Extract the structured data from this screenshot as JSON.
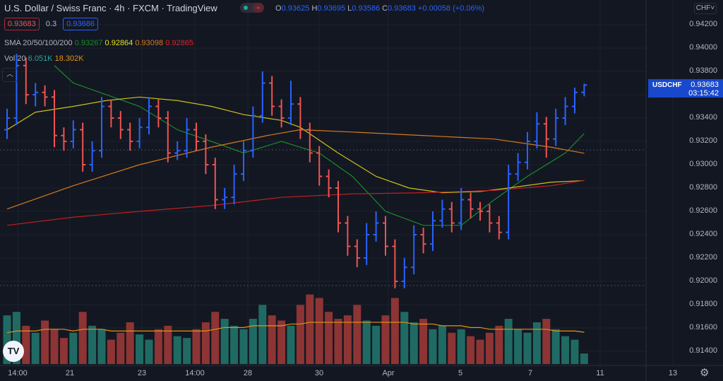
{
  "header": {
    "title": "U.S. Dollar / Swiss Franc · 4h · FXCM · TradingView",
    "ohlc": {
      "o_label": "O",
      "o": "0.93625",
      "h_label": "H",
      "h": "0.93695",
      "l_label": "L",
      "l": "0.93586",
      "c_label": "C",
      "c": "0.93683",
      "change": "+0.00058 (+0.06%)"
    },
    "sell_price": "0.93683",
    "spread": "0.3",
    "buy_price": "0.93686",
    "sma_label": "SMA 20/50/100/200",
    "sma_values": [
      "0.93267",
      "0.92864",
      "0.93098",
      "0.92865"
    ],
    "vol_label": "Vol 20",
    "vol_values": [
      "6.051K",
      "18.302K"
    ]
  },
  "currency_button": "CHF",
  "symbol_tag": {
    "symbol": "USDCHF",
    "price": "0.93683",
    "countdown": "03:15:42"
  },
  "colors": {
    "up": "#2962ff",
    "down": "#ef5350",
    "sma20": "#1b8a2a",
    "sma50": "#c9c21a",
    "sma100": "#d67a1c",
    "sma200": "#c01f1f",
    "vol_up": "#1f6b64",
    "vol_down": "#8d3434",
    "vol_ma": "#e6930e",
    "bg": "#131722"
  },
  "price_axis": [
    "0.94200",
    "0.94000",
    "0.93800",
    "0.93400",
    "0.93200",
    "0.93000",
    "0.92800",
    "0.92600",
    "0.92400",
    "0.92200",
    "0.92000",
    "0.91800",
    "0.91600",
    "0.91400"
  ],
  "time_axis": [
    "14:00",
    "21",
    "23",
    "14:00",
    "28",
    "30",
    "Apr",
    "5",
    "7",
    "11",
    "13"
  ],
  "chart_data": {
    "type": "ohlc",
    "ylim": [
      0.913,
      0.943
    ],
    "bars": [
      [
        0.933,
        0.9348,
        0.9322,
        0.934
      ],
      [
        0.934,
        0.9395,
        0.9334,
        0.9385
      ],
      [
        0.9385,
        0.9392,
        0.9352,
        0.936
      ],
      [
        0.936,
        0.937,
        0.935,
        0.9362
      ],
      [
        0.9362,
        0.9368,
        0.935,
        0.9358
      ],
      [
        0.9358,
        0.9364,
        0.9315,
        0.9325
      ],
      [
        0.9325,
        0.9332,
        0.9312,
        0.932
      ],
      [
        0.932,
        0.9338,
        0.9314,
        0.933
      ],
      [
        0.933,
        0.9336,
        0.9294,
        0.93
      ],
      [
        0.93,
        0.932,
        0.9294,
        0.9312
      ],
      [
        0.9312,
        0.9358,
        0.9306,
        0.935
      ],
      [
        0.935,
        0.9356,
        0.9332,
        0.934
      ],
      [
        0.934,
        0.9346,
        0.9322,
        0.933
      ],
      [
        0.933,
        0.9336,
        0.9312,
        0.932
      ],
      [
        0.932,
        0.934,
        0.9314,
        0.9332
      ],
      [
        0.9332,
        0.9358,
        0.9326,
        0.935
      ],
      [
        0.935,
        0.9356,
        0.9332,
        0.934
      ],
      [
        0.934,
        0.9346,
        0.9302,
        0.931
      ],
      [
        0.931,
        0.932,
        0.9304,
        0.9312
      ],
      [
        0.9312,
        0.934,
        0.9306,
        0.933
      ],
      [
        0.933,
        0.9336,
        0.9312,
        0.932
      ],
      [
        0.932,
        0.9326,
        0.9292,
        0.93
      ],
      [
        0.93,
        0.9306,
        0.9262,
        0.927
      ],
      [
        0.927,
        0.928,
        0.9262,
        0.9272
      ],
      [
        0.9272,
        0.93,
        0.9266,
        0.9292
      ],
      [
        0.9292,
        0.932,
        0.9286,
        0.9312
      ],
      [
        0.9312,
        0.935,
        0.9306,
        0.9342
      ],
      [
        0.9342,
        0.938,
        0.9336,
        0.937
      ],
      [
        0.937,
        0.9376,
        0.9342,
        0.935
      ],
      [
        0.935,
        0.9356,
        0.9332,
        0.934
      ],
      [
        0.934,
        0.9372,
        0.9334,
        0.9352
      ],
      [
        0.9352,
        0.9358,
        0.9322,
        0.933
      ],
      [
        0.933,
        0.9336,
        0.9302,
        0.931
      ],
      [
        0.931,
        0.9316,
        0.9282,
        0.929
      ],
      [
        0.929,
        0.9296,
        0.9272,
        0.928
      ],
      [
        0.928,
        0.9286,
        0.9242,
        0.925
      ],
      [
        0.925,
        0.9256,
        0.9222,
        0.923
      ],
      [
        0.923,
        0.9236,
        0.9212,
        0.922
      ],
      [
        0.922,
        0.925,
        0.9214,
        0.924
      ],
      [
        0.924,
        0.926,
        0.9234,
        0.925
      ],
      [
        0.925,
        0.9256,
        0.9222,
        0.923
      ],
      [
        0.923,
        0.9236,
        0.9194,
        0.92
      ],
      [
        0.92,
        0.922,
        0.9194,
        0.9212
      ],
      [
        0.9212,
        0.9248,
        0.9206,
        0.924
      ],
      [
        0.924,
        0.9246,
        0.9224,
        0.9232
      ],
      [
        0.9232,
        0.926,
        0.9226,
        0.9252
      ],
      [
        0.9252,
        0.927,
        0.9246,
        0.9262
      ],
      [
        0.9262,
        0.9268,
        0.9242,
        0.925
      ],
      [
        0.925,
        0.928,
        0.9244,
        0.927
      ],
      [
        0.927,
        0.9276,
        0.9254,
        0.9262
      ],
      [
        0.9262,
        0.9268,
        0.9252,
        0.926
      ],
      [
        0.926,
        0.9266,
        0.9242,
        0.925
      ],
      [
        0.925,
        0.9256,
        0.9236,
        0.9242
      ],
      [
        0.9242,
        0.93,
        0.9236,
        0.9292
      ],
      [
        0.9292,
        0.931,
        0.9286,
        0.9302
      ],
      [
        0.9302,
        0.9328,
        0.9296,
        0.932
      ],
      [
        0.932,
        0.9345,
        0.9314,
        0.9335
      ],
      [
        0.9335,
        0.9341,
        0.9306,
        0.9322
      ],
      [
        0.9322,
        0.9348,
        0.9316,
        0.934
      ],
      [
        0.934,
        0.9358,
        0.9334,
        0.935
      ],
      [
        0.935,
        0.9366,
        0.9344,
        0.9362
      ],
      [
        0.9362,
        0.93695,
        0.93586,
        0.93683
      ]
    ],
    "volume": [
      28,
      30,
      22,
      18,
      25,
      20,
      15,
      18,
      30,
      22,
      20,
      14,
      18,
      24,
      17,
      14,
      20,
      22,
      16,
      15,
      20,
      24,
      30,
      26,
      22,
      20,
      26,
      34,
      28,
      25,
      22,
      34,
      40,
      38,
      30,
      26,
      28,
      34,
      25,
      22,
      28,
      38,
      30,
      24,
      26,
      20,
      22,
      18,
      20,
      16,
      14,
      18,
      22,
      26,
      20,
      18,
      24,
      26,
      20,
      16,
      14,
      6.051
    ],
    "volume_ma": [
      18,
      19,
      19,
      19,
      20,
      20,
      20,
      19,
      20,
      20,
      20,
      19,
      19,
      19,
      19,
      19,
      19,
      19,
      19,
      19,
      19,
      19,
      20,
      21,
      21,
      21,
      22,
      22,
      22,
      22,
      23,
      23,
      24,
      24,
      24,
      24,
      24,
      24,
      24,
      24,
      24,
      24,
      24,
      23,
      23,
      23,
      22,
      22,
      22,
      21,
      21,
      20,
      20,
      20,
      20,
      20,
      20,
      20,
      19,
      19,
      19,
      18.302
    ],
    "sma": [
      {
        "name": "SMA 20",
        "points": [
          [
            5,
            0.9385
          ],
          [
            7,
            0.937
          ],
          [
            14,
            0.935
          ],
          [
            18,
            0.933
          ],
          [
            21.6,
            0.932
          ],
          [
            25,
            0.931
          ],
          [
            29,
            0.932
          ],
          [
            33,
            0.931
          ],
          [
            36.5,
            0.929
          ],
          [
            40,
            0.926
          ],
          [
            44,
            0.9248
          ],
          [
            48,
            0.9248
          ],
          [
            51.5,
            0.927
          ],
          [
            55,
            0.929
          ],
          [
            59,
            0.931
          ],
          [
            61,
            0.93267
          ]
        ]
      },
      {
        "name": "SMA 50",
        "points": [
          [
            0,
            0.933
          ],
          [
            3,
            0.9345
          ],
          [
            7,
            0.935
          ],
          [
            10.5,
            0.9355
          ],
          [
            14,
            0.9358
          ],
          [
            18,
            0.9355
          ],
          [
            21.6,
            0.935
          ],
          [
            25,
            0.9343
          ],
          [
            29,
            0.9338
          ],
          [
            31,
            0.9332
          ],
          [
            35,
            0.931
          ],
          [
            39,
            0.929
          ],
          [
            42.5,
            0.928
          ],
          [
            46,
            0.9276
          ],
          [
            50,
            0.9277
          ],
          [
            53,
            0.928
          ],
          [
            57.5,
            0.9285
          ],
          [
            61,
            0.92864
          ]
        ]
      },
      {
        "name": "SMA 100",
        "points": [
          [
            0,
            0.9262
          ],
          [
            7,
            0.9282
          ],
          [
            14,
            0.93
          ],
          [
            21.6,
            0.9315
          ],
          [
            27.5,
            0.9325
          ],
          [
            31,
            0.933
          ],
          [
            36.5,
            0.9328
          ],
          [
            44,
            0.9325
          ],
          [
            51.5,
            0.9322
          ],
          [
            57.5,
            0.9315
          ],
          [
            61,
            0.93098
          ]
        ]
      },
      {
        "name": "SMA 200",
        "points": [
          [
            0,
            0.9248
          ],
          [
            7,
            0.9255
          ],
          [
            14,
            0.926
          ],
          [
            21.6,
            0.9265
          ],
          [
            29,
            0.9272
          ],
          [
            36.5,
            0.9275
          ],
          [
            44,
            0.9276
          ],
          [
            51.5,
            0.9278
          ],
          [
            57.5,
            0.9282
          ],
          [
            61,
            0.92865
          ]
        ]
      }
    ]
  }
}
